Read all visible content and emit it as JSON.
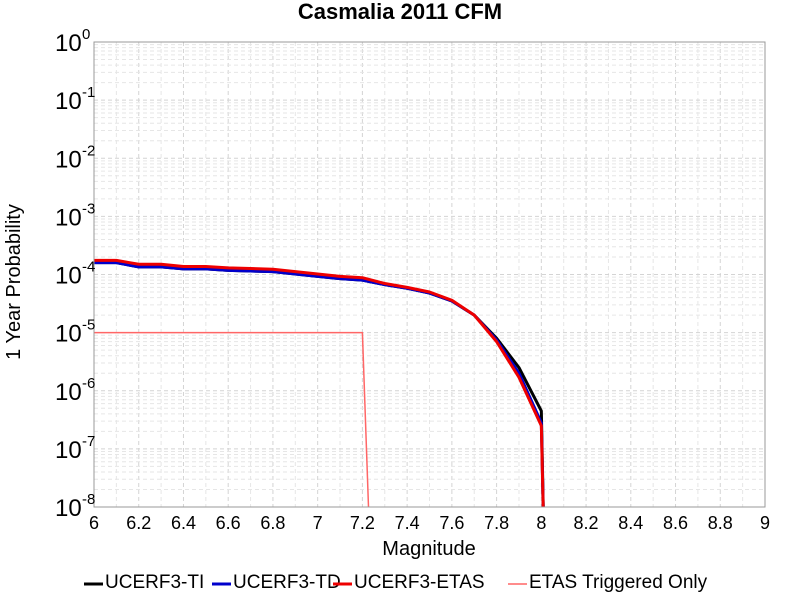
{
  "chart_data": {
    "type": "line",
    "title": "Casmalia 2011 CFM",
    "xlabel": "Magnitude",
    "ylabel": "1 Year Probability",
    "xlim": [
      6,
      9
    ],
    "ylim": [
      1e-08,
      1
    ],
    "yscale": "log",
    "x_ticks": [
      "6",
      "6.2",
      "6.4",
      "6.6",
      "6.8",
      "7",
      "7.2",
      "7.4",
      "7.6",
      "7.8",
      "8",
      "8.2",
      "8.4",
      "8.6",
      "8.8",
      "9"
    ],
    "y_ticks": [
      {
        "base": "10",
        "exp": "0"
      },
      {
        "base": "10",
        "exp": "-1"
      },
      {
        "base": "10",
        "exp": "-2"
      },
      {
        "base": "10",
        "exp": "-3"
      },
      {
        "base": "10",
        "exp": "-4"
      },
      {
        "base": "10",
        "exp": "-5"
      },
      {
        "base": "10",
        "exp": "-6"
      },
      {
        "base": "10",
        "exp": "-7"
      },
      {
        "base": "10",
        "exp": "-8"
      }
    ],
    "grid": true,
    "legend_position": "bottom",
    "series": [
      {
        "name": "UCERF3-TI",
        "color": "#000000",
        "x": [
          6.0,
          6.1,
          6.2,
          6.3,
          6.4,
          6.5,
          6.6,
          6.7,
          6.8,
          6.9,
          7.0,
          7.1,
          7.2,
          7.3,
          7.4,
          7.5,
          7.6,
          7.7,
          7.8,
          7.9,
          8.0,
          8.01
        ],
        "y": [
          0.00016,
          0.00016,
          0.000135,
          0.000135,
          0.000125,
          0.000125,
          0.000118,
          0.000115,
          0.000112,
          0.000102,
          9.3e-05,
          8.5e-05,
          8e-05,
          6.7e-05,
          5.8e-05,
          4.8e-05,
          3.5e-05,
          2e-05,
          8e-06,
          2.5e-06,
          4.5e-07,
          5e-09
        ]
      },
      {
        "name": "UCERF3-TD",
        "color": "#0000cc",
        "x": [
          6.0,
          6.1,
          6.2,
          6.3,
          6.4,
          6.5,
          6.6,
          6.7,
          6.8,
          6.9,
          7.0,
          7.1,
          7.2,
          7.3,
          7.4,
          7.5,
          7.6,
          7.7,
          7.8,
          7.9,
          8.0,
          8.01
        ],
        "y": [
          0.00016,
          0.00016,
          0.000135,
          0.000135,
          0.000125,
          0.000125,
          0.000118,
          0.000115,
          0.000112,
          0.000102,
          9.3e-05,
          8.5e-05,
          8e-05,
          6.7e-05,
          5.8e-05,
          4.8e-05,
          3.5e-05,
          2e-05,
          7.5e-06,
          2e-06,
          2.8e-07,
          5e-09
        ]
      },
      {
        "name": "UCERF3-ETAS",
        "color": "#ee0000",
        "x": [
          6.0,
          6.1,
          6.2,
          6.3,
          6.4,
          6.5,
          6.6,
          6.7,
          6.8,
          6.9,
          7.0,
          7.1,
          7.2,
          7.3,
          7.4,
          7.5,
          7.6,
          7.7,
          7.8,
          7.9,
          8.0,
          8.01
        ],
        "y": [
          0.000175,
          0.000175,
          0.00015,
          0.00015,
          0.000137,
          0.000137,
          0.00013,
          0.000127,
          0.000123,
          0.000112,
          0.000102,
          9.3e-05,
          8.8e-05,
          7e-05,
          6e-05,
          5e-05,
          3.6e-05,
          2e-05,
          7e-06,
          1.7e-06,
          2.5e-07,
          5e-09
        ]
      },
      {
        "name": "ETAS Triggered Only",
        "color": "#ff6666",
        "x": [
          6.0,
          7.2,
          7.23
        ],
        "y": [
          1e-05,
          1e-05,
          5e-09
        ]
      }
    ]
  }
}
